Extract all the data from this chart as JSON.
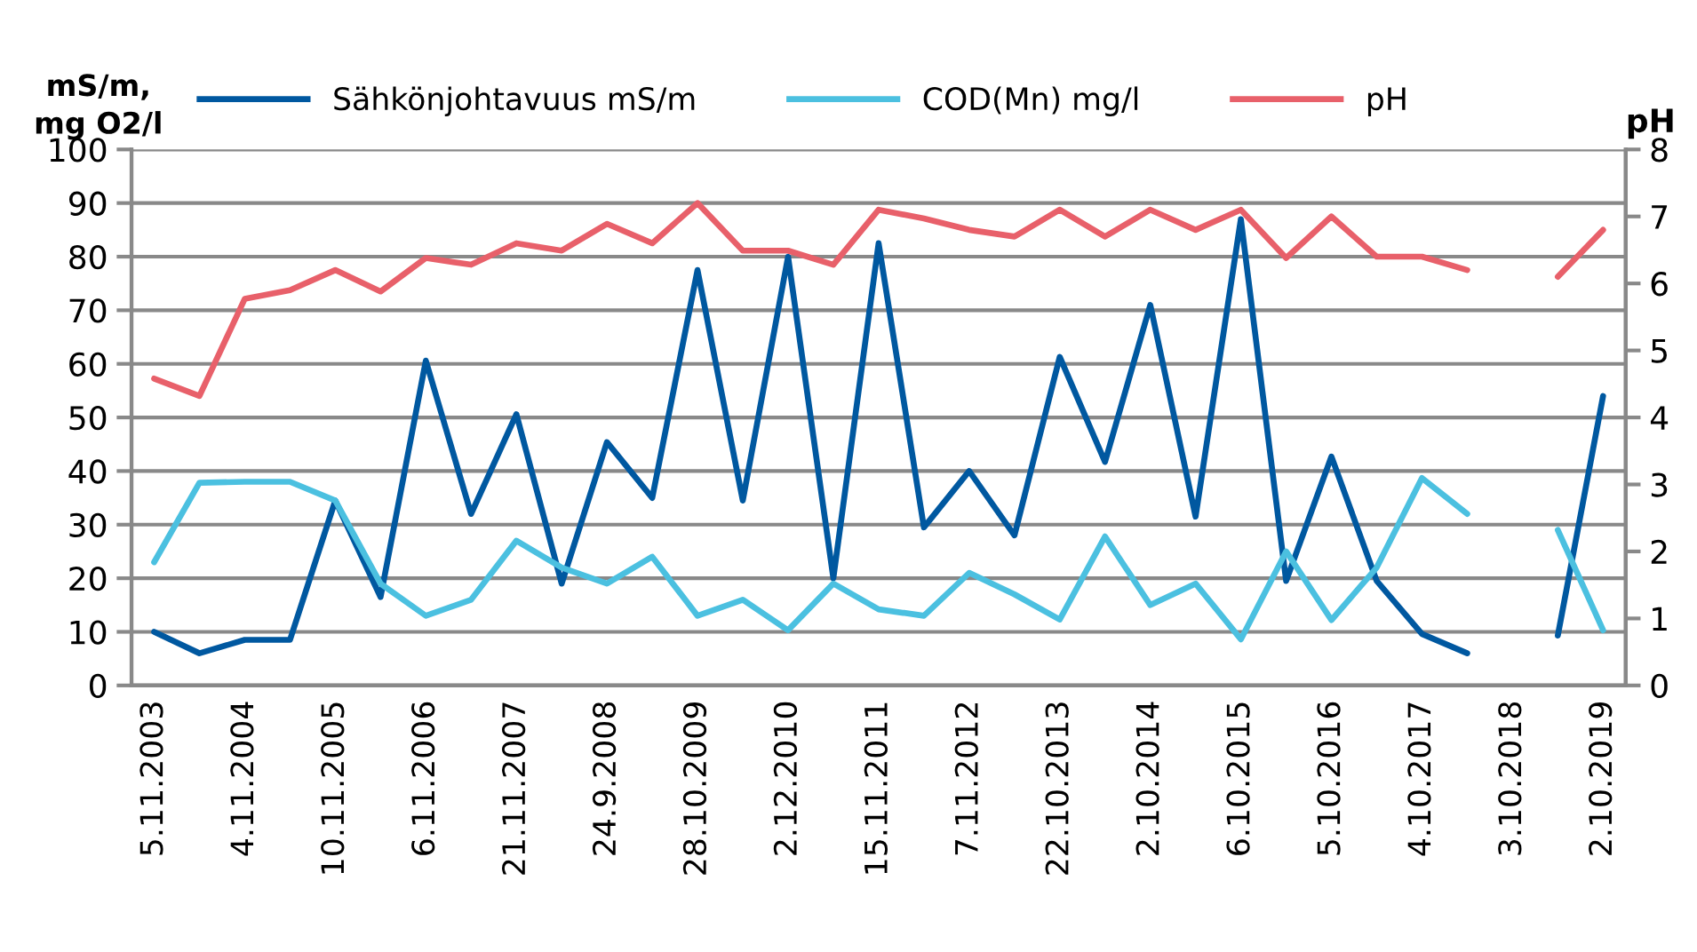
{
  "chart_data": {
    "type": "line",
    "ylabel": "mS/m,\nmg O2/l",
    "y2label": "pH",
    "categories": [
      "5.11.2003",
      null,
      "4.11.2004",
      null,
      "10.11.2005",
      null,
      "6.11.2006",
      null,
      "21.11.2007",
      null,
      "24.9.2008",
      null,
      "28.10.2009",
      null,
      "2.12.2010",
      null,
      "15.11.2011",
      null,
      "7.11.2012",
      null,
      "22.10.2013",
      null,
      "2.10.2014",
      null,
      "6.10.2015",
      null,
      "5.10.2016",
      null,
      "4.10.2017",
      null,
      "3.10.2018",
      null,
      "2.10.2019"
    ],
    "series": [
      {
        "name": "Sähkönjohtavuus mS/m",
        "color": "#0058a0",
        "values": [
          10,
          6,
          8.5,
          8.5,
          34.5,
          16.5,
          60.6,
          32,
          50.6,
          19,
          45.4,
          35,
          77.5,
          34.5,
          80,
          20,
          82.5,
          29.5,
          40,
          28,
          61.3,
          41.7,
          71,
          31.5,
          87,
          19.5,
          42.7,
          19.5,
          9.6,
          6,
          null,
          9.3,
          54
        ]
      },
      {
        "name": "COD(Mn) mg/l",
        "color": "#4bc0e0",
        "values": [
          23,
          37.8,
          38,
          38,
          34.5,
          19,
          13,
          16,
          27,
          22,
          19,
          24,
          13,
          16,
          10.3,
          19,
          14.2,
          13,
          21,
          17,
          12.3,
          27.8,
          15,
          19,
          8.6,
          25,
          12.2,
          22,
          38.7,
          32,
          null,
          29,
          10.3
        ]
      },
      {
        "name": "pH",
        "color": "#e8606a",
        "axis": "y2",
        "values": [
          4.58,
          4.32,
          5.77,
          5.9,
          6.2,
          5.88,
          6.38,
          6.28,
          6.6,
          6.49,
          6.89,
          6.6,
          7.2,
          6.49,
          6.49,
          6.28,
          7.1,
          6.97,
          6.8,
          6.7,
          7.1,
          6.7,
          7.1,
          6.8,
          7.1,
          6.38,
          7.0,
          6.4,
          6.4,
          6.2,
          null,
          6.1,
          6.8
        ]
      }
    ],
    "ylim": [
      0,
      100
    ],
    "yticks": [
      0,
      10,
      20,
      30,
      40,
      50,
      60,
      70,
      80,
      90,
      100
    ],
    "y2lim": [
      0,
      8
    ],
    "y2ticks": [
      0,
      1,
      2,
      3,
      4,
      5,
      6,
      7,
      8
    ],
    "grid": "y",
    "legend": "top",
    "marker": "none",
    "line_style": "solid"
  }
}
